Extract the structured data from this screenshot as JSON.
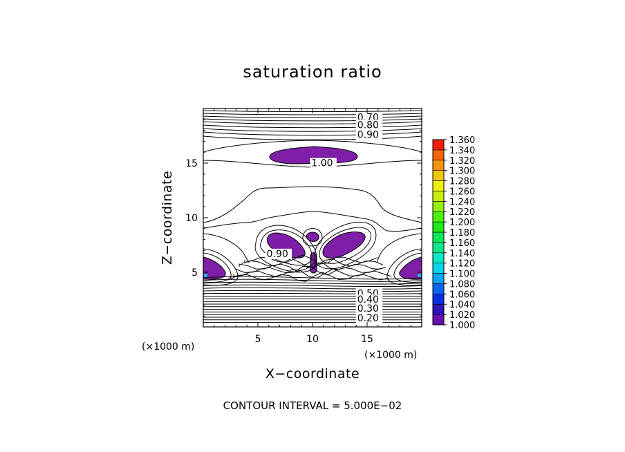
{
  "chart_data": {
    "type": "contour",
    "title": "saturation ratio",
    "xlabel": "X−coordinate",
    "ylabel": "Z−coordinate",
    "x_unit_label": "(×1000 m)",
    "z_unit_label": "(×1000 m)",
    "xlim": [
      0,
      20
    ],
    "ylim": [
      0,
      20
    ],
    "x_ticks": [
      5,
      10,
      15
    ],
    "y_ticks": [
      5,
      10,
      15
    ],
    "contour_labels": [
      {
        "text": "0.70",
        "x": 14.1,
        "z": 18.9
      },
      {
        "text": "0.80",
        "x": 14.1,
        "z": 18.2
      },
      {
        "text": "0.90",
        "x": 14.1,
        "z": 17.3
      },
      {
        "text": "1.00",
        "x": 9.9,
        "z": 14.7
      },
      {
        "text": "0.90",
        "x": 5.8,
        "z": 6.4
      },
      {
        "text": "0.50",
        "x": 14.1,
        "z": 2.8
      },
      {
        "text": "0.40",
        "x": 14.1,
        "z": 2.2
      },
      {
        "text": "0.30",
        "x": 14.1,
        "z": 1.4
      },
      {
        "text": "0.20",
        "x": 14.1,
        "z": 0.5
      }
    ],
    "colorbar": {
      "levels": [
        "1.000",
        "1.020",
        "1.040",
        "1.060",
        "1.080",
        "1.100",
        "1.120",
        "1.140",
        "1.160",
        "1.180",
        "1.200",
        "1.220",
        "1.240",
        "1.260",
        "1.280",
        "1.300",
        "1.320",
        "1.340",
        "1.360"
      ],
      "colors": [
        "#6a0fb0",
        "#2b14b8",
        "#0a2ee6",
        "#0a63f5",
        "#0aa4f5",
        "#0ad6e8",
        "#0ae8c4",
        "#0ae88a",
        "#0ae85a",
        "#1ee81a",
        "#4ef00a",
        "#96f00a",
        "#c8f00a",
        "#f0f00a",
        "#f0c80a",
        "#f5960a",
        "#f5640a",
        "#f51e0a",
        "#f58080"
      ]
    },
    "footer": "CONTOUR INTERVAL = 5.000E−02"
  }
}
